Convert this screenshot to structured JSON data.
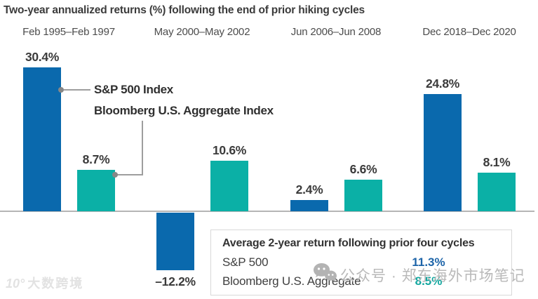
{
  "title": "Two-year annualized returns (%) following the end of prior hiking cycles",
  "legend": {
    "sp500_label": "S&P 500 Index",
    "agg_label": "Bloomberg U.S. Aggregate Index"
  },
  "summary": {
    "title": "Average 2-year return following prior four cycles",
    "rows": [
      {
        "label": "S&P 500",
        "value": "11.3%",
        "color": "#1d64a8"
      },
      {
        "label": "Bloomberg U.S. Aggregate",
        "value": "8.5%",
        "color": "#12a79f"
      }
    ]
  },
  "watermarks": {
    "center_text": "公众号 · 郑东海外市场笔记",
    "logo_mark": "10°",
    "logo_text": "大数跨境"
  },
  "colors": {
    "sp500_bar": "#0a69ad",
    "agg_bar": "#0bb0a6",
    "axis": "#b5b5b5"
  },
  "chart_data": {
    "type": "bar",
    "title": "Two-year annualized returns (%) following the end of prior hiking cycles",
    "categories": [
      "Feb 1995–Feb 1997",
      "May 2000–May 2002",
      "Jun 2006–Jun 2008",
      "Dec 2018–Dec 2020"
    ],
    "series": [
      {
        "name": "S&P 500 Index",
        "color": "#0a69ad",
        "values": [
          30.4,
          -12.2,
          2.4,
          24.8
        ],
        "labels": [
          "30.4%",
          "–12.2%",
          "2.4%",
          "24.8%"
        ]
      },
      {
        "name": "Bloomberg U.S. Aggregate Index",
        "color": "#0bb0a6",
        "values": [
          8.7,
          10.6,
          6.6,
          8.1
        ],
        "labels": [
          "8.7%",
          "10.6%",
          "6.6%",
          "8.1%"
        ]
      }
    ],
    "unit": "%",
    "baseline": 0,
    "grid": false,
    "legend_position": "callout",
    "averages": {
      "S&P 500": 11.3,
      "Bloomberg U.S. Aggregate": 8.5
    }
  }
}
